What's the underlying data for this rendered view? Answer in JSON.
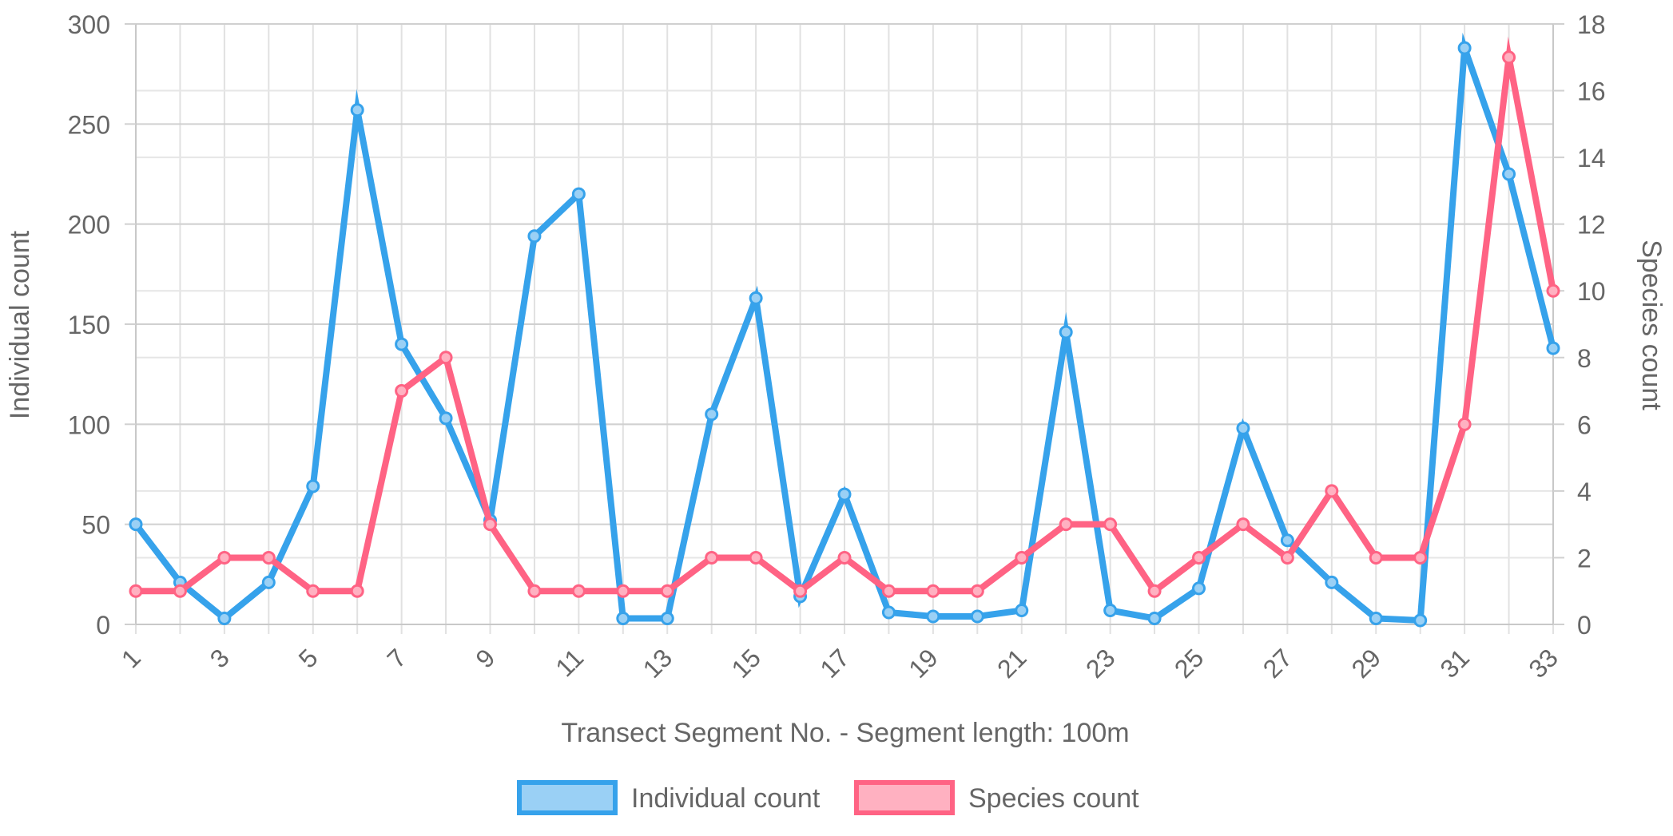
{
  "chart_data": {
    "type": "line",
    "xlabel": "Transect Segment No. - Segment length: 100m",
    "ylabel_left": "Individual count",
    "ylabel_right": "Species count",
    "x": [
      1,
      2,
      3,
      4,
      5,
      6,
      7,
      8,
      9,
      10,
      11,
      12,
      13,
      14,
      15,
      16,
      17,
      18,
      19,
      20,
      21,
      22,
      23,
      24,
      25,
      26,
      27,
      28,
      29,
      30,
      31,
      32,
      33
    ],
    "x_tick_labels": [
      "1",
      "3",
      "5",
      "7",
      "9",
      "11",
      "13",
      "15",
      "17",
      "19",
      "21",
      "23",
      "25",
      "27",
      "29",
      "31",
      "33"
    ],
    "y_left_ticks": [
      "0",
      "50",
      "100",
      "150",
      "200",
      "250",
      "300"
    ],
    "y_right_ticks": [
      "0",
      "2",
      "4",
      "6",
      "8",
      "10",
      "12",
      "14",
      "16",
      "18"
    ],
    "ylim_left": [
      0,
      300
    ],
    "ylim_right": [
      0,
      18
    ],
    "grid": true,
    "legend_position": "bottom",
    "series": [
      {
        "name": "Individual count",
        "axis": "left",
        "color": "#36a2eb",
        "fill": "#9ad0f5",
        "values": [
          50,
          21,
          3,
          21,
          69,
          257,
          140,
          103,
          52,
          194,
          215,
          3,
          3,
          105,
          163,
          14,
          65,
          6,
          4,
          4,
          7,
          146,
          7,
          3,
          18,
          98,
          42,
          21,
          3,
          2,
          288,
          225,
          138
        ]
      },
      {
        "name": "Species count",
        "axis": "right",
        "color": "#ff6384",
        "fill": "#ffb1c1",
        "values": [
          1,
          1,
          2,
          2,
          1,
          1,
          7,
          8,
          3,
          1,
          1,
          1,
          1,
          2,
          2,
          1,
          2,
          1,
          1,
          1,
          2,
          3,
          3,
          1,
          2,
          3,
          2,
          4,
          2,
          2,
          6,
          17,
          10
        ]
      }
    ]
  }
}
